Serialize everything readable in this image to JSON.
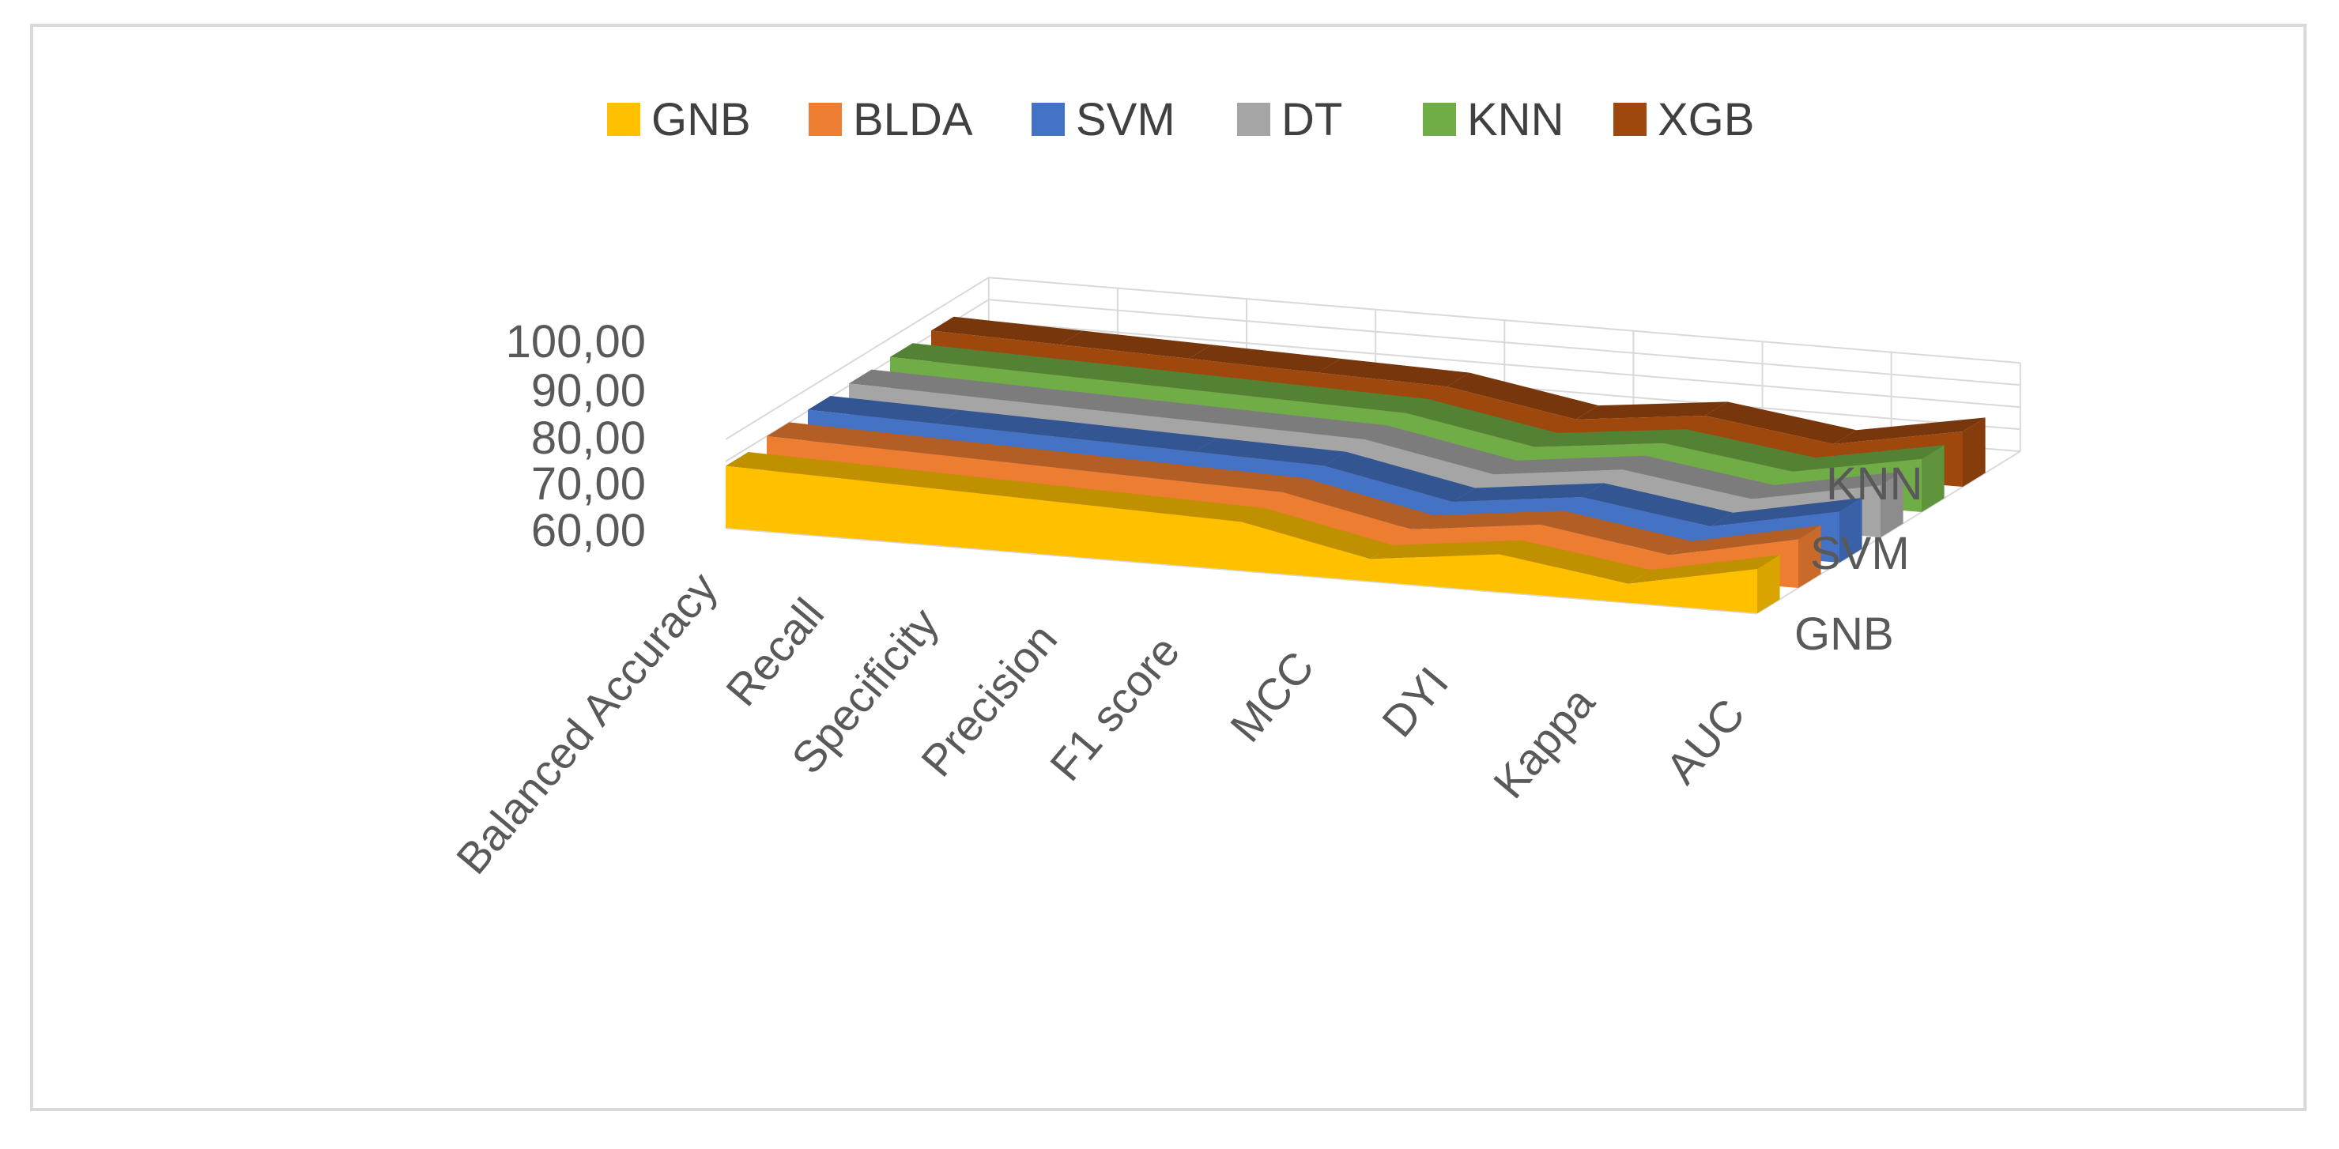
{
  "chart_data": {
    "type": "area",
    "variant": "3d-area",
    "title": "",
    "xlabel": "",
    "ylabel": "",
    "categories": [
      "Balanced Accuracy",
      "Recall",
      "Specificity",
      "Precision",
      "F1 score",
      "MCC",
      "DYI",
      "Kappa",
      "AUC"
    ],
    "y_ticks": [
      "60,00",
      "70,00",
      "80,00",
      "90,00",
      "100,00"
    ],
    "ylim": [
      60,
      100
    ],
    "depth_labels": [
      "GNB",
      "SVM",
      "KNN"
    ],
    "legend_position": "top",
    "grid": true,
    "series": [
      {
        "name": "GNB",
        "color": "#FFC000",
        "values": [
          88.0,
          86.5,
          85.0,
          83.5,
          82.0,
          70.0,
          77.0,
          68.5,
          80.0
        ]
      },
      {
        "name": "BLDA",
        "color": "#ED7D31",
        "values": [
          90.0,
          88.5,
          87.0,
          85.5,
          84.0,
          72.0,
          79.0,
          70.0,
          82.0
        ]
      },
      {
        "name": "SVM",
        "color": "#4472C4",
        "values": [
          90.5,
          89.0,
          87.5,
          86.0,
          84.5,
          73.0,
          80.0,
          71.5,
          83.0
        ]
      },
      {
        "name": "DT",
        "color": "#A5A5A5",
        "values": [
          91.0,
          89.5,
          88.0,
          86.5,
          85.0,
          74.0,
          81.0,
          72.5,
          83.5
        ]
      },
      {
        "name": "KNN",
        "color": "#70AD47",
        "values": [
          91.5,
          90.0,
          88.5,
          87.0,
          85.5,
          75.0,
          81.5,
          73.5,
          84.0
        ]
      },
      {
        "name": "XGB",
        "color": "#9E480E",
        "values": [
          92.0,
          90.5,
          89.0,
          87.5,
          86.0,
          76.0,
          82.5,
          74.5,
          85.0
        ]
      }
    ]
  }
}
